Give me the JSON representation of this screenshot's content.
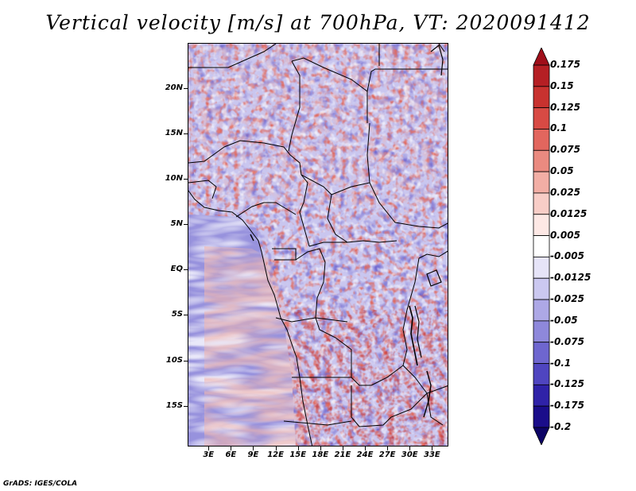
{
  "title": "Vertical velocity [m/s] at 700hPa, VT: 2020091412",
  "credit": "GrADS: IGES/COLA",
  "lat_axis": {
    "ticks": [
      {
        "label": "20N",
        "value": 20
      },
      {
        "label": "15N",
        "value": 15
      },
      {
        "label": "10N",
        "value": 10
      },
      {
        "label": "5N",
        "value": 5
      },
      {
        "label": "EQ",
        "value": 0
      },
      {
        "label": "5S",
        "value": -5
      },
      {
        "label": "10S",
        "value": -10
      },
      {
        "label": "15S",
        "value": -15
      }
    ],
    "range": [
      -19.5,
      25
    ]
  },
  "lon_axis": {
    "ticks": [
      {
        "label": "3E",
        "value": 3
      },
      {
        "label": "6E",
        "value": 6
      },
      {
        "label": "9E",
        "value": 9
      },
      {
        "label": "12E",
        "value": 12
      },
      {
        "label": "15E",
        "value": 15
      },
      {
        "label": "18E",
        "value": 18
      },
      {
        "label": "21E",
        "value": 21
      },
      {
        "label": "24E",
        "value": 24
      },
      {
        "label": "27E",
        "value": 27
      },
      {
        "label": "30E",
        "value": 30
      },
      {
        "label": "33E",
        "value": 33
      }
    ],
    "range": [
      0.2,
      35.2
    ]
  },
  "colorbar": {
    "levels": [
      "0.175",
      "0.15",
      "0.125",
      "0.1",
      "0.075",
      "0.05",
      "0.025",
      "0.0125",
      "0.005",
      "-0.005",
      "-0.0125",
      "-0.025",
      "-0.05",
      "-0.075",
      "-0.1",
      "-0.125",
      "-0.175",
      "-0.2"
    ],
    "colors": [
      "#a00f1a",
      "#b51f24",
      "#c8322f",
      "#d84a44",
      "#e2665e",
      "#ea8a80",
      "#f2aea5",
      "#f8cdc7",
      "#fde8e5",
      "#ffffff",
      "#e6e4f8",
      "#cbc8f0",
      "#ada8e6",
      "#8e88db",
      "#6e66cf",
      "#4f45c0",
      "#2f22a8",
      "#1a0d8a",
      "#0d0466"
    ]
  }
}
